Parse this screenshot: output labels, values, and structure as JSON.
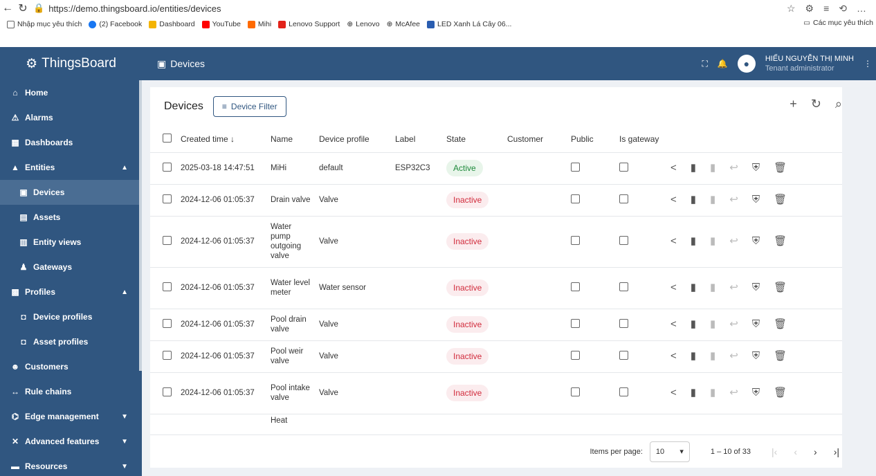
{
  "browser": {
    "url": "https://demo.thingsboard.io/entities/devices",
    "bookmarks": [
      "Nhập mục yêu thích",
      "(2) Facebook",
      "Dashboard",
      "YouTube",
      "Mihi",
      "Lenovo Support",
      "Lenovo",
      "McAfee",
      "LED Xanh Lá Cây 06..."
    ],
    "favorites_label": "Các mục yêu thích"
  },
  "header": {
    "logo": "ThingsBoard",
    "page_title": "Devices",
    "user_name": "HIẾU NGUYỄN THỊ MINH",
    "user_role": "Tenant administrator"
  },
  "sidebar": {
    "items": [
      {
        "label": "Home",
        "icon": "home-icon"
      },
      {
        "label": "Alarms",
        "icon": "alarm-icon"
      },
      {
        "label": "Dashboards",
        "icon": "dashboard-icon"
      },
      {
        "label": "Entities",
        "icon": "entities-icon"
      },
      {
        "label": "Devices",
        "icon": "device-icon"
      },
      {
        "label": "Assets",
        "icon": "asset-icon"
      },
      {
        "label": "Entity views",
        "icon": "entity-view-icon"
      },
      {
        "label": "Gateways",
        "icon": "gateway-icon"
      },
      {
        "label": "Profiles",
        "icon": "profiles-icon"
      },
      {
        "label": "Device profiles",
        "icon": "device-profile-icon"
      },
      {
        "label": "Asset profiles",
        "icon": "asset-profile-icon"
      },
      {
        "label": "Customers",
        "icon": "customers-icon"
      },
      {
        "label": "Rule chains",
        "icon": "rule-chain-icon"
      },
      {
        "label": "Edge management",
        "icon": "edge-icon"
      },
      {
        "label": "Advanced features",
        "icon": "advanced-icon"
      },
      {
        "label": "Resources",
        "icon": "resources-icon"
      }
    ]
  },
  "toolbar": {
    "title": "Devices",
    "filter_label": "Device Filter"
  },
  "table": {
    "headers": [
      "Created time",
      "Name",
      "Device profile",
      "Label",
      "State",
      "Customer",
      "Public",
      "Is gateway"
    ],
    "rows": [
      {
        "created": "2025-03-18 14:47:51",
        "name": "MiHi",
        "profile": "default",
        "label": "ESP32C3",
        "state": "Active"
      },
      {
        "created": "2024-12-06 01:05:37",
        "name": "Drain valve",
        "profile": "Valve",
        "label": "",
        "state": "Inactive"
      },
      {
        "created": "2024-12-06 01:05:37",
        "name": "Water pump outgoing valve",
        "profile": "Valve",
        "label": "",
        "state": "Inactive"
      },
      {
        "created": "2024-12-06 01:05:37",
        "name": "Water level meter",
        "profile": "Water sensor",
        "label": "",
        "state": "Inactive"
      },
      {
        "created": "2024-12-06 01:05:37",
        "name": "Pool drain valve",
        "profile": "Valve",
        "label": "",
        "state": "Inactive"
      },
      {
        "created": "2024-12-06 01:05:37",
        "name": "Pool weir valve",
        "profile": "Valve",
        "label": "",
        "state": "Inactive"
      },
      {
        "created": "2024-12-06 01:05:37",
        "name": "Pool intake valve",
        "profile": "Valve",
        "label": "",
        "state": "Inactive"
      },
      {
        "created": "",
        "name": "Heat",
        "profile": "",
        "label": "",
        "state": ""
      }
    ]
  },
  "footer": {
    "items_per_page_label": "Items per page:",
    "items_per_page": "10",
    "range": "1 – 10 of 33"
  }
}
